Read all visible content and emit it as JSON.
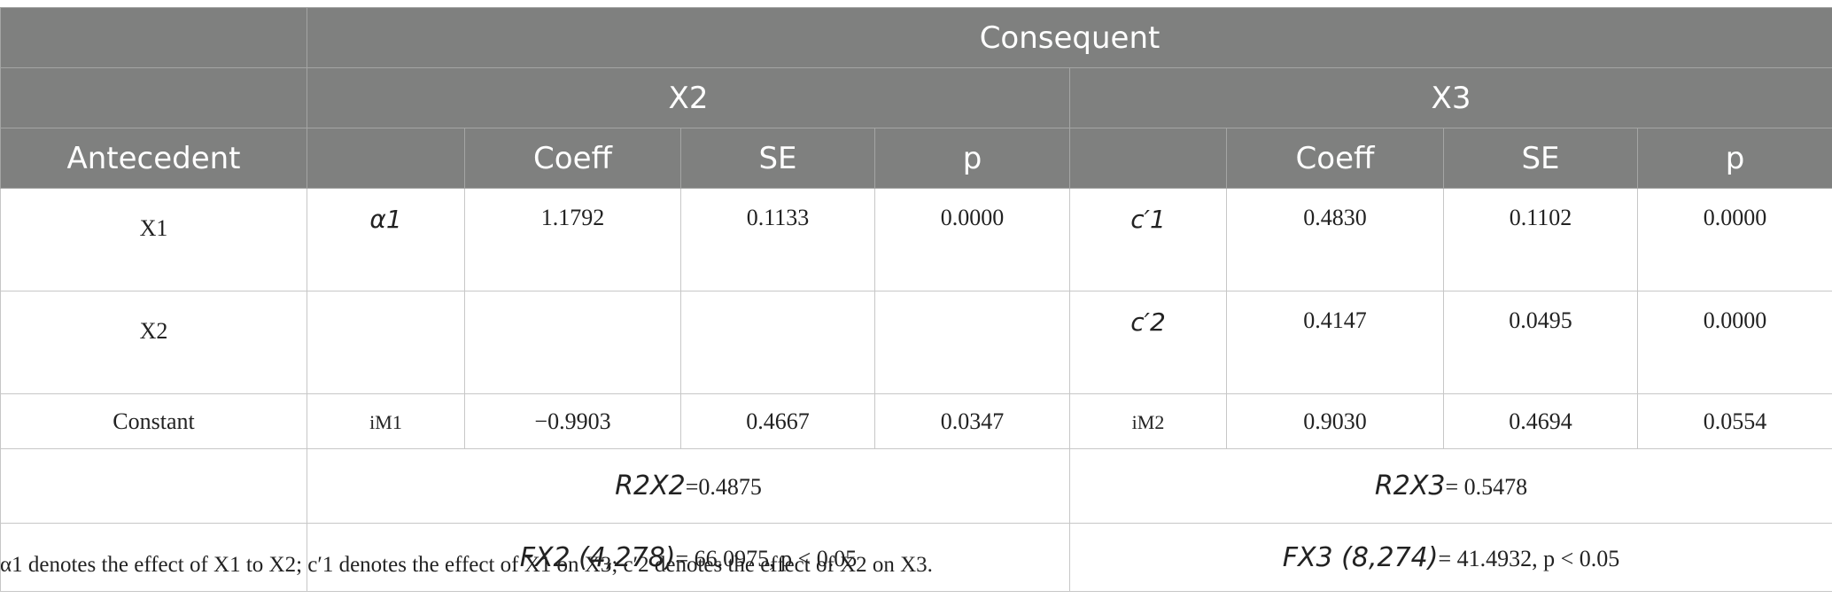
{
  "header": {
    "consequent": "Consequent",
    "x2": "X2",
    "x3": "X3",
    "antecedent": "Antecedent",
    "coeff": "Coeff",
    "se": "SE",
    "p": "p"
  },
  "rows": [
    {
      "label": "X1",
      "x2_symbol": "α1",
      "x2_coeff": "1.1792",
      "x2_se": "0.1133",
      "x2_p": "0.0000",
      "x3_symbol": "c′1",
      "x3_coeff": "0.4830",
      "x3_se": "0.1102",
      "x3_p": "0.0000"
    },
    {
      "label": "X2",
      "x2_symbol": "",
      "x2_coeff": "",
      "x2_se": "",
      "x2_p": "",
      "x3_symbol": "c′2",
      "x3_coeff": "0.4147",
      "x3_se": "0.0495",
      "x3_p": "0.0000"
    },
    {
      "label": "Constant",
      "x2_symbol": "iM1",
      "x2_coeff": "−0.9903",
      "x2_se": "0.4667",
      "x2_p": "0.0347",
      "x3_symbol": "iM2",
      "x3_coeff": "0.9030",
      "x3_se": "0.4694",
      "x3_p": "0.0554"
    }
  ],
  "r2": {
    "x2_label": "R2X2",
    "x2_value": "=0.4875",
    "x3_label": "R2X3",
    "x3_value": "= 0.5478"
  },
  "f": {
    "x2_label": "FX2 (4,278)",
    "x2_value": "= 66.0975, p < 0.05",
    "x3_label": "FX3 (8,274)",
    "x3_value": "= 41.4932, p < 0.05"
  },
  "footnote": "α1 denotes the effect of X1 to X2; c′1 denotes the effect of X1 on X3; c′2 denotes the effect of X2 on X3.",
  "colors": {
    "header_bg": "#7f807f",
    "header_text": "#ffffff",
    "border": "#c7c7c7"
  }
}
